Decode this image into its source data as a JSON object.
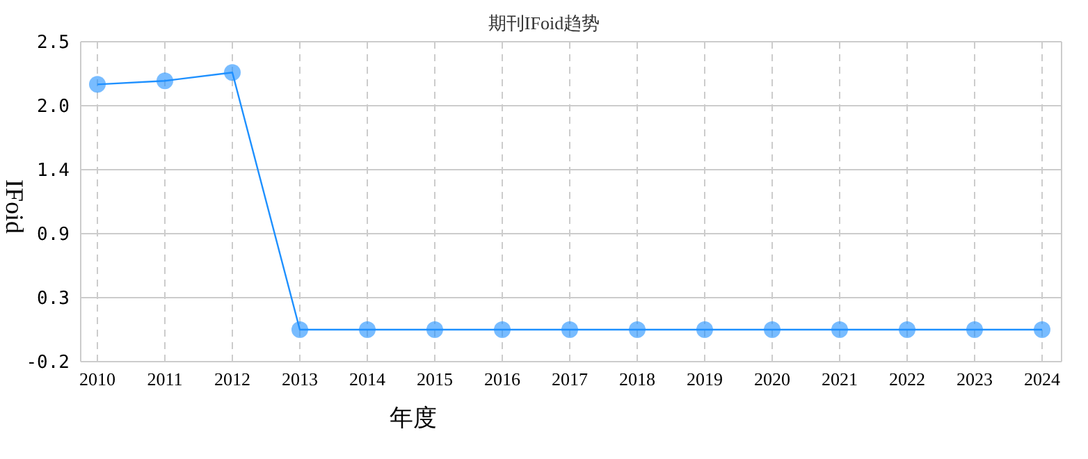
{
  "chart_data": {
    "type": "line",
    "title": "期刊IFoid趋势",
    "xlabel": "年度",
    "ylabel": "IFoid",
    "categories": [
      "2010",
      "2011",
      "2012",
      "2013",
      "2014",
      "2015",
      "2016",
      "2017",
      "2018",
      "2019",
      "2020",
      "2021",
      "2022",
      "2023",
      "2024"
    ],
    "series": [
      {
        "color": "#1e90ff",
        "values": [
          2.14,
          2.17,
          2.24,
          0.07,
          0.07,
          0.07,
          0.07,
          0.07,
          0.07,
          0.07,
          0.07,
          0.07,
          0.07,
          0.07,
          0.07
        ]
      }
    ],
    "ylim": [
      -0.2,
      2.5
    ],
    "yticks": [
      -0.2,
      {
        "value": 0.34,
        "label": "0.3"
      },
      {
        "value": 0.88,
        "label": "0.9"
      },
      {
        "value": 1.42,
        "label": "1.4"
      },
      {
        "value": 1.96,
        "label": "2.0"
      },
      2.5
    ],
    "grid": true,
    "marker": "circle",
    "line_style": "solid"
  }
}
